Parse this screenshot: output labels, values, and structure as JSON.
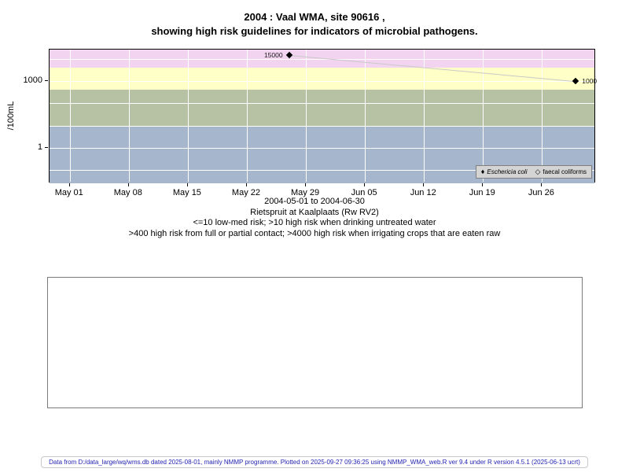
{
  "title": {
    "line1": "2004 : Vaal WMA, site 90616 ,",
    "line2": "showing high risk guidelines for indicators of microbial pathogens."
  },
  "caption": {
    "line1": "2004-05-01 to 2004-06-30",
    "line2": "Rietspruit at Kaalplaats (Rw RV2)",
    "line3": "<=10 low-med risk; >10 high risk when drinking untreated water",
    "line4": ">400 high risk from full or partial contact; >4000 high risk when irrigating crops that are eaten raw"
  },
  "legend": {
    "items": [
      {
        "label": "Eschericia coli",
        "marker": "filled-diamond",
        "glyph": "♦"
      },
      {
        "label": "faecal coliforms",
        "marker": "open-diamond",
        "glyph": "◇"
      }
    ]
  },
  "footer": {
    "text": "Data from D:/data_large/wq/wms.db dated 2025-08-01, mainly NMMP programme. Plotted on 2025-09-27 09:36:25 using NMMP_WMA_web.R ver 9.4 under R version 4.5.1 (2025-06-13 ucrt)"
  },
  "chart_data": {
    "type": "scatter",
    "title": "2004 : Vaal WMA, site 90616 , showing high risk guidelines for indicators of microbial pathogens.",
    "xlabel": "",
    "ylabel": "/100mL",
    "y_scale": "log10",
    "grid": true,
    "legend_position": "bottom-right",
    "x_range": [
      "2004-05-01",
      "2004-06-30"
    ],
    "x_ticks": [
      "May 01",
      "May 08",
      "May 15",
      "May 22",
      "May 29",
      "Jun 05",
      "Jun 12",
      "Jun 19",
      "Jun 26"
    ],
    "x_tick_days": [
      0,
      7,
      14,
      21,
      28,
      35,
      42,
      49,
      56
    ],
    "x_range_days": [
      -2.4,
      62.4
    ],
    "y_ticks": [
      {
        "value": 1,
        "label": "1"
      },
      {
        "value": 1000,
        "label": "1000"
      }
    ],
    "ylim_log": [
      -1.6,
      4.42
    ],
    "gridlines_log": [
      -1,
      0,
      1,
      2,
      3,
      4
    ],
    "bands": [
      {
        "name": "irrigation-high-risk",
        "label": ">4000 high risk when irrigating crops that are eaten raw",
        "from_log": 3.602,
        "to_log": 4.42,
        "color": "#f2d4f0"
      },
      {
        "name": "contact-high-risk",
        "label": ">400 high risk from full or partial contact",
        "from_log": 2.602,
        "to_log": 3.602,
        "color": "#ffffc8"
      },
      {
        "name": "drinking-high-risk",
        "label": ">10 high risk when drinking untreated water",
        "from_log": 1.0,
        "to_log": 2.602,
        "color": "#b7c1a3"
      },
      {
        "name": "low-med-risk",
        "label": "<=10 low-med risk",
        "from_log": -1.6,
        "to_log": 1.0,
        "color": "#a6b6cd"
      }
    ],
    "series": [
      {
        "name": "Eschericia coli",
        "marker": "filled-diamond",
        "color": "#000000",
        "line_color": "#c9c9c9",
        "points": [
          {
            "date": "2004-05-27",
            "day": 26,
            "value": 15000,
            "label": "15000",
            "label_side": "left"
          },
          {
            "date": "2004-06-30",
            "day": 60,
            "value": 1000,
            "label": "1000",
            "label_side": "right"
          }
        ]
      },
      {
        "name": "faecal coliforms",
        "marker": "open-diamond",
        "color": "#000000",
        "points": []
      }
    ]
  }
}
